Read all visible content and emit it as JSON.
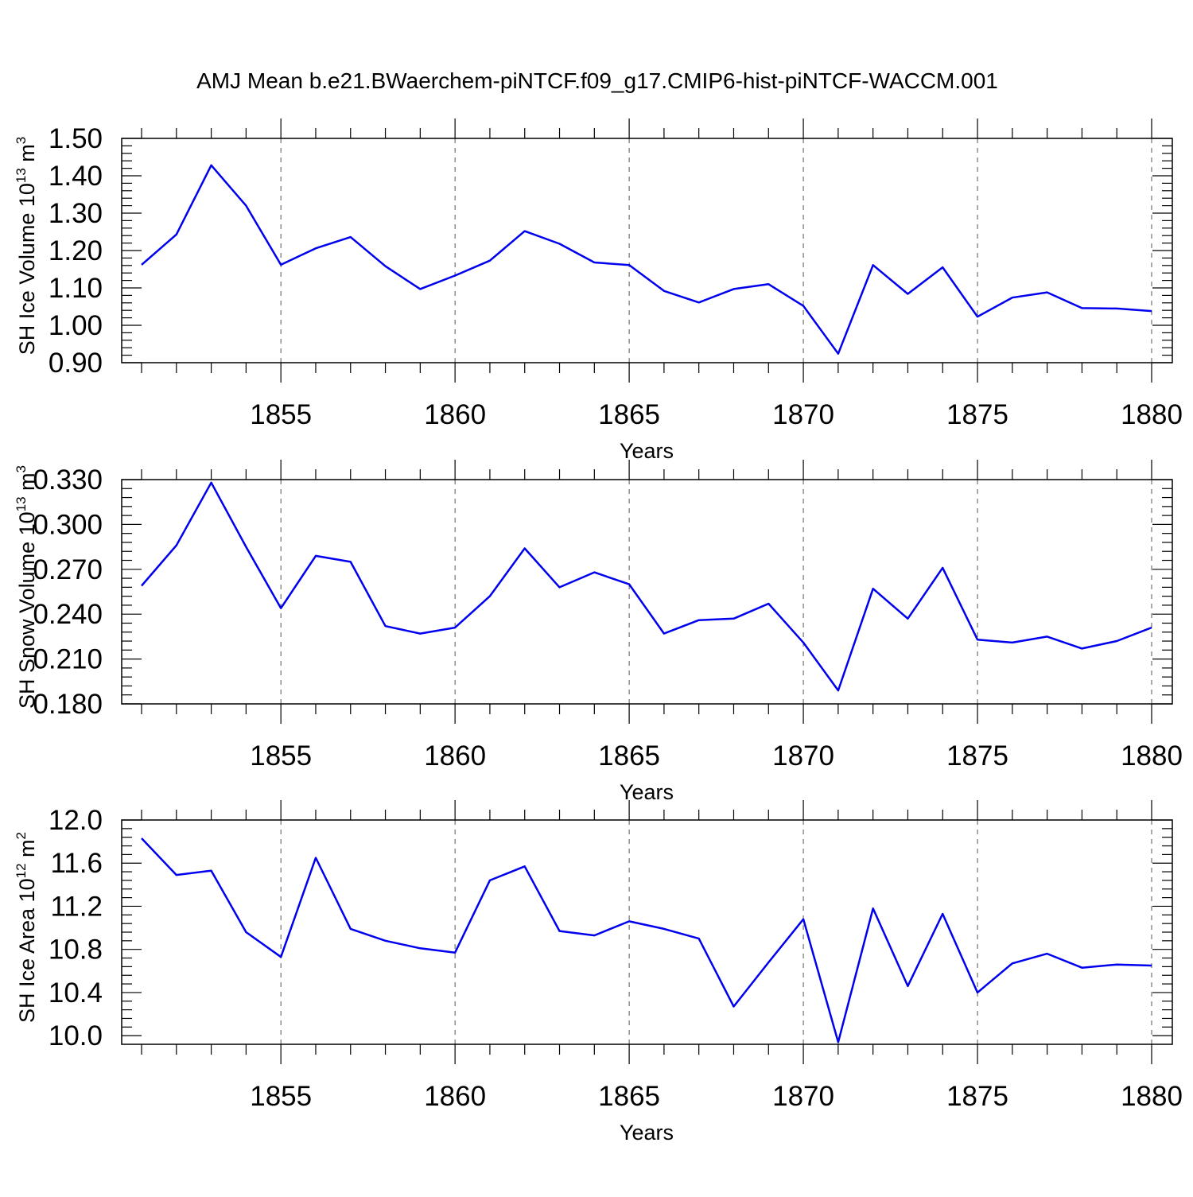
{
  "page": {
    "title": "AMJ Mean b.e21.BWaerchem-piNTCF.f09_g17.CMIP6-hist-piNTCF-WACCM.001"
  },
  "colors": {
    "series": "#0000ee",
    "axis": "#000000",
    "grid": "#555555"
  },
  "chart_data": [
    {
      "type": "line",
      "xlabel": "Years",
      "ylabel": {
        "main": "SH Ice Volume 10",
        "exp": "13",
        "unit": " m",
        "unit_exp": "3"
      },
      "xlim": [
        1851,
        1880
      ],
      "ylim": [
        0.9,
        1.5
      ],
      "xticks": [
        1855,
        1860,
        1865,
        1870,
        1875,
        1880
      ],
      "yticks": [
        0.9,
        1.0,
        1.1,
        1.2,
        1.3,
        1.4,
        1.5
      ],
      "ytick_labels": [
        "0.90",
        "1.00",
        "1.10",
        "1.20",
        "1.30",
        "1.40",
        "1.50"
      ],
      "grid": "vertical dashed at major x ticks",
      "x": [
        1851,
        1852,
        1853,
        1854,
        1855,
        1856,
        1857,
        1858,
        1859,
        1860,
        1861,
        1862,
        1863,
        1864,
        1865,
        1866,
        1867,
        1868,
        1869,
        1870,
        1871,
        1872,
        1873,
        1874,
        1875,
        1876,
        1877,
        1878,
        1879,
        1880
      ],
      "values": [
        1.162,
        1.243,
        1.428,
        1.32,
        1.162,
        1.206,
        1.236,
        1.158,
        1.097,
        1.133,
        1.173,
        1.252,
        1.218,
        1.168,
        1.161,
        1.092,
        1.061,
        1.097,
        1.11,
        1.052,
        0.924,
        1.161,
        1.084,
        1.155,
        1.023,
        1.074,
        1.088,
        1.046,
        1.045,
        1.038
      ]
    },
    {
      "type": "line",
      "xlabel": "Years",
      "ylabel": {
        "main": "SH Snow Volume 10",
        "exp": "13",
        "unit": " m",
        "unit_exp": "3"
      },
      "xlim": [
        1851,
        1880
      ],
      "ylim": [
        0.18,
        0.33
      ],
      "xticks": [
        1855,
        1860,
        1865,
        1870,
        1875,
        1880
      ],
      "yticks": [
        0.18,
        0.21,
        0.24,
        0.27,
        0.3,
        0.33
      ],
      "ytick_labels": [
        "0.180",
        "0.210",
        "0.240",
        "0.270",
        "0.300",
        "0.330"
      ],
      "grid": "vertical dashed at major x ticks",
      "x": [
        1851,
        1852,
        1853,
        1854,
        1855,
        1856,
        1857,
        1858,
        1859,
        1860,
        1861,
        1862,
        1863,
        1864,
        1865,
        1866,
        1867,
        1868,
        1869,
        1870,
        1871,
        1872,
        1873,
        1874,
        1875,
        1876,
        1877,
        1878,
        1879,
        1880
      ],
      "values": [
        0.259,
        0.286,
        0.328,
        0.285,
        0.244,
        0.279,
        0.275,
        0.232,
        0.227,
        0.231,
        0.252,
        0.284,
        0.258,
        0.268,
        0.26,
        0.227,
        0.236,
        0.237,
        0.247,
        0.221,
        0.189,
        0.257,
        0.237,
        0.271,
        0.223,
        0.221,
        0.225,
        0.217,
        0.222,
        0.231
      ]
    },
    {
      "type": "line",
      "xlabel": "Years",
      "ylabel": {
        "main": "SH Ice Area 10",
        "exp": "12",
        "unit": " m",
        "unit_exp": "2"
      },
      "xlim": [
        1851,
        1880
      ],
      "ylim": [
        9.92,
        12.0
      ],
      "xticks": [
        1855,
        1860,
        1865,
        1870,
        1875,
        1880
      ],
      "yticks": [
        10.0,
        10.4,
        10.8,
        11.2,
        11.6,
        12.0
      ],
      "ytick_labels": [
        "10.0",
        "10.4",
        "10.8",
        "11.2",
        "11.6",
        "12.0"
      ],
      "grid": "vertical dashed at major x ticks",
      "x": [
        1851,
        1852,
        1853,
        1854,
        1855,
        1856,
        1857,
        1858,
        1859,
        1860,
        1861,
        1862,
        1863,
        1864,
        1865,
        1866,
        1867,
        1868,
        1869,
        1870,
        1871,
        1872,
        1873,
        1874,
        1875,
        1876,
        1877,
        1878,
        1879,
        1880
      ],
      "values": [
        11.83,
        11.49,
        11.53,
        10.96,
        10.73,
        11.65,
        10.99,
        10.88,
        10.81,
        10.77,
        11.44,
        11.57,
        10.97,
        10.93,
        11.06,
        10.99,
        10.9,
        10.27,
        10.68,
        11.08,
        9.94,
        11.18,
        10.46,
        11.13,
        10.4,
        10.67,
        10.76,
        10.63,
        10.66,
        10.65
      ]
    }
  ]
}
